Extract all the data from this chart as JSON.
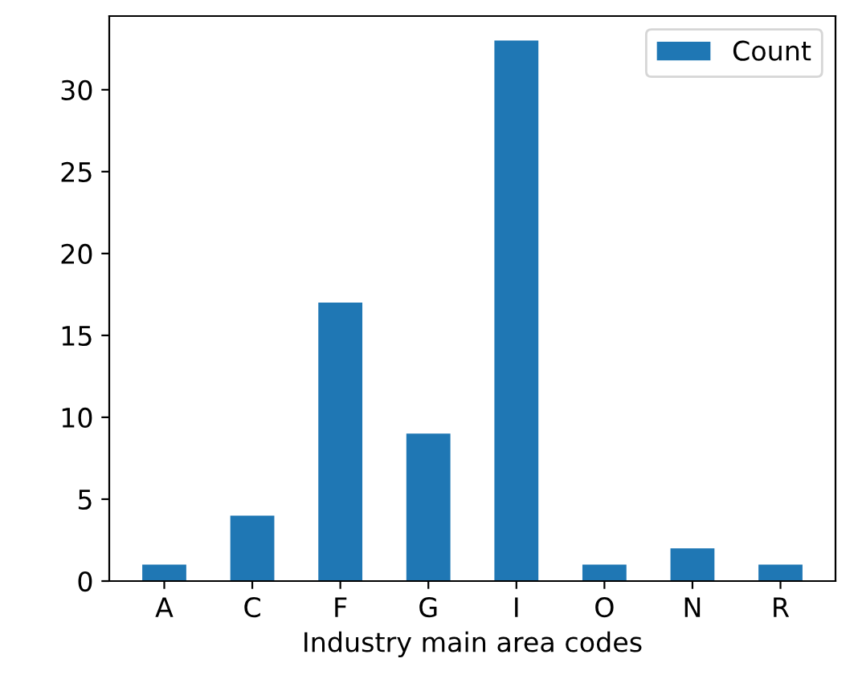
{
  "chart_data": {
    "type": "bar",
    "xlabel": "Industry main area codes",
    "categories": [
      "A",
      "C",
      "F",
      "G",
      "I",
      "O",
      "N",
      "R"
    ],
    "series": [
      {
        "name": "Count",
        "color": "#1f77b4",
        "values": [
          1,
          4,
          17,
          9,
          33,
          1,
          2,
          1
        ]
      }
    ],
    "ylim": [
      0,
      34.5
    ],
    "yticks": [
      0,
      5,
      10,
      15,
      20,
      25,
      30
    ],
    "legend": "top right",
    "grid": false
  }
}
